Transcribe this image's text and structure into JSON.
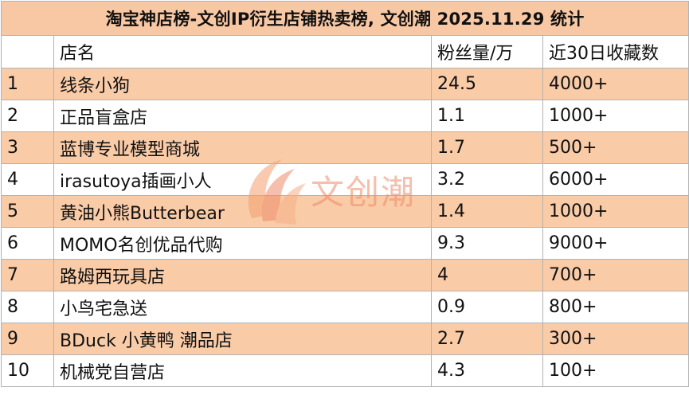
{
  "chart_data": {
    "type": "table",
    "title": "淘宝神店榜-文创IP衍生店铺热卖榜, 文创潮 2025.11.29 统计",
    "columns": [
      "",
      "店名",
      "粉丝量/万",
      "近30日收藏数"
    ],
    "rows": [
      {
        "rank": "1",
        "name": "线条小狗",
        "fans": "24.5",
        "favorites": "4000+"
      },
      {
        "rank": "2",
        "name": "正品盲盒店",
        "fans": "1.1",
        "favorites": "1000+"
      },
      {
        "rank": "3",
        "name": "蓝博专业模型商城",
        "fans": "1.7",
        "favorites": "500+"
      },
      {
        "rank": "4",
        "name": "irasutoya插画小人",
        "fans": "3.2",
        "favorites": "6000+"
      },
      {
        "rank": "5",
        "name": "黄油小熊Butterbear",
        "fans": "1.4",
        "favorites": "1000+"
      },
      {
        "rank": "6",
        "name": "MOMO名创优品代购",
        "fans": "9.3",
        "favorites": "9000+"
      },
      {
        "rank": "7",
        "name": "路姆西玩具店",
        "fans": "4",
        "favorites": "700+"
      },
      {
        "rank": "8",
        "name": "小鸟宅急送",
        "fans": "0.9",
        "favorites": "800+"
      },
      {
        "rank": "9",
        "name": "BDuck 小黄鸭 潮品店",
        "fans": "2.7",
        "favorites": "300+"
      },
      {
        "rank": "10",
        "name": "机械党自营店",
        "fans": "4.3",
        "favorites": "100+"
      }
    ]
  },
  "watermark": {
    "text": "文创潮",
    "icon": "wenchuangchao-logo-icon",
    "color": "#ef8c6b"
  },
  "colors": {
    "title_bg": "#f8c7a3",
    "band_bg": "#f9cba7",
    "grid_line": "#b3b3b3"
  }
}
